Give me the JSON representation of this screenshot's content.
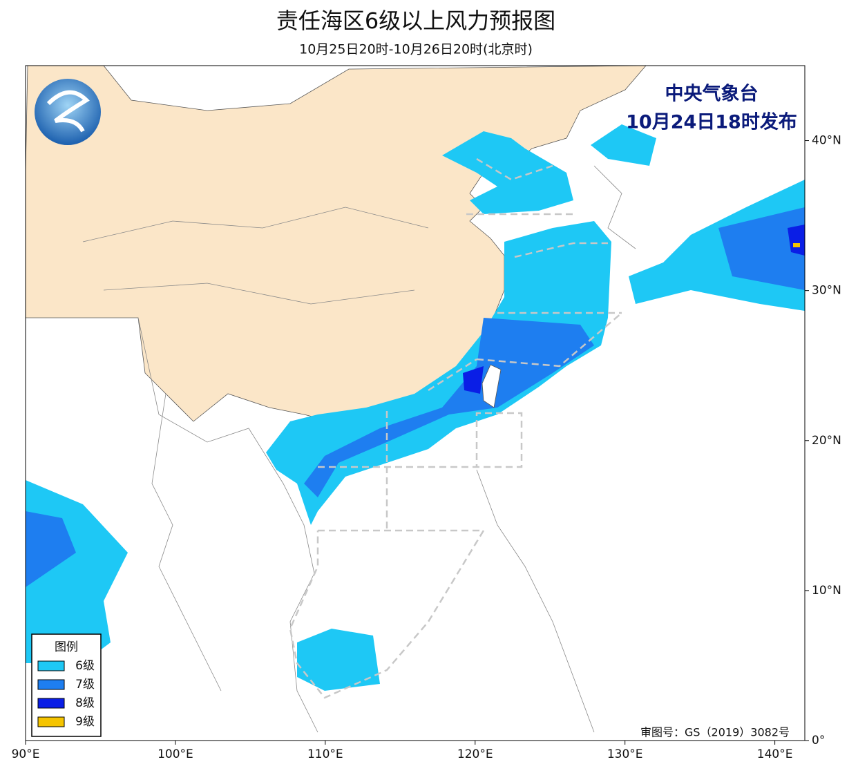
{
  "title": "责任海区6级以上风力预报图",
  "subtitle": "10月25日20时-10月26日20时(北京时)",
  "publisher": [
    "中央气象台",
    "10月24日18时发布"
  ],
  "legend": {
    "title": "图例",
    "items": [
      {
        "label": "6级",
        "color": "#1ec8f5"
      },
      {
        "label": "7级",
        "color": "#1e7ef0"
      },
      {
        "label": "8级",
        "color": "#0a1ee6"
      },
      {
        "label": "9级",
        "color": "#f5c400"
      }
    ]
  },
  "approval": "审图号：GS（2019）3082号",
  "map": {
    "xlim": [
      90,
      142
    ],
    "ylim": [
      0,
      45
    ],
    "xticks": [
      {
        "value": 90,
        "label": "90°E"
      },
      {
        "value": 100,
        "label": "100°E"
      },
      {
        "value": 110,
        "label": "110°E"
      },
      {
        "value": 120,
        "label": "120°E"
      },
      {
        "value": 130,
        "label": "130°E"
      },
      {
        "value": 140,
        "label": "140°E"
      }
    ],
    "yticks": [
      {
        "value": 0,
        "label": "0°"
      },
      {
        "value": 10,
        "label": "10°N"
      },
      {
        "value": 20,
        "label": "20°N"
      },
      {
        "value": 30,
        "label": "30°N"
      },
      {
        "value": 40,
        "label": "40°N"
      }
    ]
  }
}
